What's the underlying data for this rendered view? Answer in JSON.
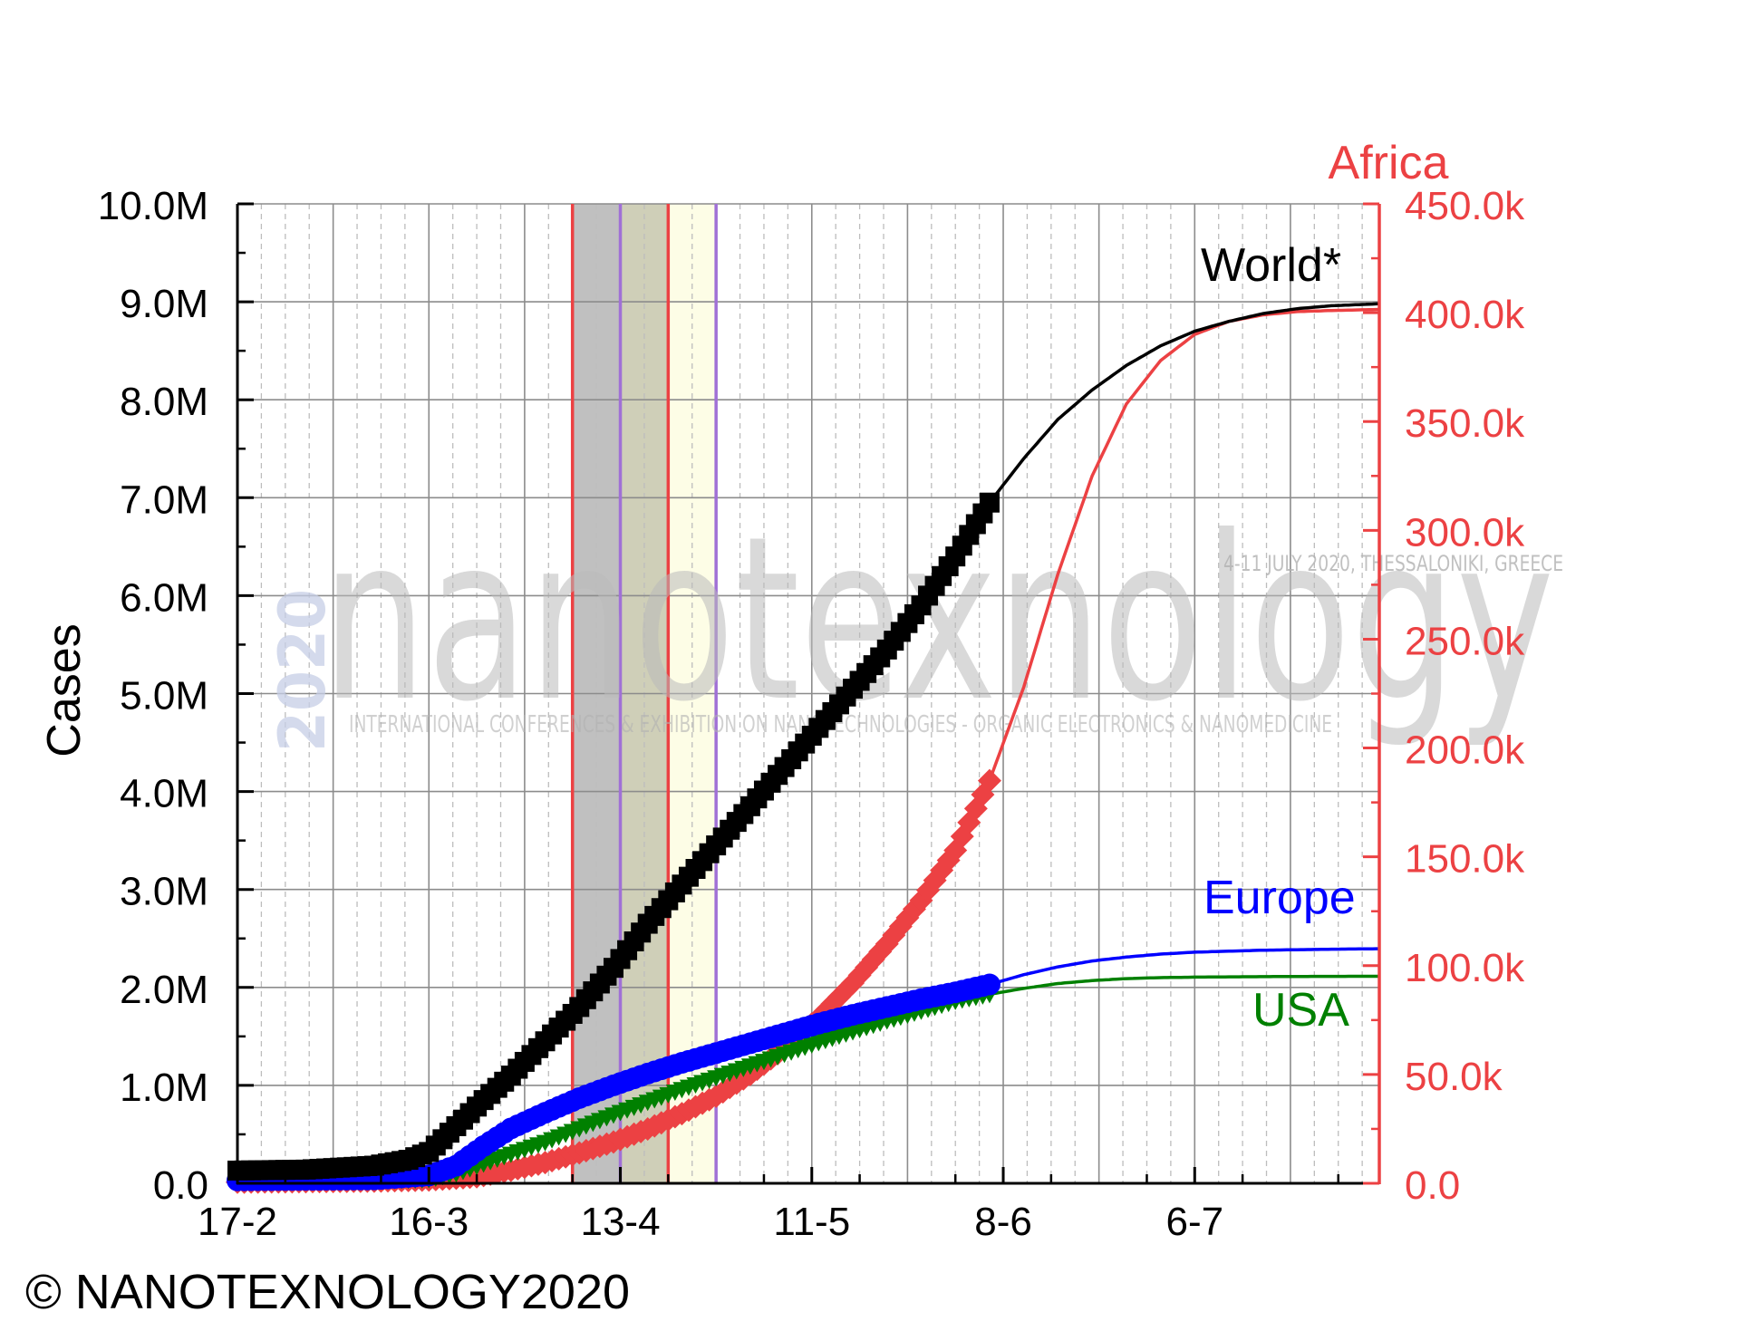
{
  "chart_data": {
    "type": "line",
    "ylabel": "Cases",
    "y2label": "Africa",
    "x_tick_labels": [
      "17-2",
      "16-3",
      "13-4",
      "11-5",
      "8-6",
      "6-7"
    ],
    "x_ticks_days": [
      0,
      28,
      56,
      84,
      112,
      140
    ],
    "xlim_days": [
      0,
      167
    ],
    "ylim": [
      0,
      10000000
    ],
    "y2lim": [
      0,
      450000
    ],
    "y_tick_labels": [
      "0.0",
      "1.0M",
      "2.0M",
      "3.0M",
      "4.0M",
      "5.0M",
      "6.0M",
      "7.0M",
      "8.0M",
      "9.0M",
      "10.0M"
    ],
    "y2_tick_labels": [
      "0.0",
      "50.0k",
      "100.0k",
      "150.0k",
      "200.0k",
      "250.0k",
      "300.0k",
      "350.0k",
      "400.0k",
      "450.0k"
    ],
    "y2_tick_values": [
      0,
      50000,
      100000,
      150000,
      200000,
      250000,
      300000,
      350000,
      400000,
      450000
    ],
    "grid": true,
    "shaded_bands_days": [
      {
        "from": 49,
        "to": 56,
        "color": "#c0c0c0"
      },
      {
        "from": 56,
        "to": 63,
        "color": "#cfcfb8"
      },
      {
        "from": 63,
        "to": 70,
        "color": "#fdfde6"
      }
    ],
    "vertical_lines_days": [
      {
        "day": 49,
        "color": "#ec4143"
      },
      {
        "day": 56,
        "color": "#a070d6"
      },
      {
        "day": 63,
        "color": "#ec4143"
      },
      {
        "day": 70,
        "color": "#a070d6"
      }
    ],
    "series": [
      {
        "name": "World*",
        "axis": "left",
        "color": "#000000",
        "marker": "square",
        "observed_until_day": 110,
        "x": [
          0,
          10,
          20,
          25,
          28,
          30,
          33,
          36,
          40,
          45,
          50,
          55,
          60,
          65,
          70,
          75,
          80,
          85,
          90,
          95,
          100,
          105,
          110,
          115,
          120,
          125,
          130,
          135,
          140,
          145,
          150,
          155,
          160,
          167
        ],
        "values": [
          130000,
          140000,
          180000,
          240000,
          320000,
          450000,
          650000,
          850000,
          1100000,
          1450000,
          1800000,
          2200000,
          2650000,
          3050000,
          3450000,
          3850000,
          4250000,
          4650000,
          5050000,
          5450000,
          5900000,
          6400000,
          6950000,
          7400000,
          7800000,
          8100000,
          8350000,
          8550000,
          8700000,
          8800000,
          8880000,
          8930000,
          8960000,
          8980000
        ]
      },
      {
        "name": "Europe",
        "axis": "left",
        "color": "#0000ff",
        "marker": "circle",
        "observed_until_day": 110,
        "x": [
          0,
          20,
          28,
          32,
          36,
          40,
          45,
          50,
          55,
          60,
          65,
          70,
          75,
          80,
          85,
          90,
          95,
          100,
          105,
          110,
          115,
          120,
          125,
          130,
          135,
          140,
          145,
          150,
          155,
          160,
          167
        ],
        "values": [
          30000,
          40000,
          80000,
          180000,
          380000,
          560000,
          720000,
          870000,
          1000000,
          1120000,
          1230000,
          1330000,
          1430000,
          1530000,
          1630000,
          1720000,
          1800000,
          1880000,
          1950000,
          2030000,
          2130000,
          2210000,
          2270000,
          2310000,
          2340000,
          2360000,
          2370000,
          2380000,
          2385000,
          2390000,
          2395000
        ]
      },
      {
        "name": "USA",
        "axis": "left",
        "color": "#008000",
        "marker": "triangle",
        "observed_until_day": 110,
        "x": [
          0,
          20,
          28,
          32,
          36,
          40,
          45,
          50,
          55,
          60,
          65,
          70,
          75,
          80,
          85,
          90,
          95,
          100,
          105,
          110,
          115,
          120,
          125,
          130,
          135,
          140,
          145,
          150,
          155,
          160,
          167
        ],
        "values": [
          20000,
          25000,
          40000,
          100000,
          200000,
          300000,
          420000,
          560000,
          700000,
          830000,
          960000,
          1080000,
          1200000,
          1320000,
          1440000,
          1550000,
          1660000,
          1760000,
          1860000,
          1930000,
          1990000,
          2040000,
          2070000,
          2090000,
          2100000,
          2105000,
          2108000,
          2110000,
          2112000,
          2113000,
          2114000
        ]
      },
      {
        "name": "Africa",
        "axis": "right",
        "color": "#ec4143",
        "marker": "diamond",
        "observed_until_day": 110,
        "x": [
          0,
          20,
          28,
          35,
          40,
          45,
          50,
          55,
          60,
          65,
          70,
          75,
          80,
          85,
          90,
          95,
          100,
          105,
          110,
          115,
          120,
          125,
          130,
          135,
          140,
          145,
          150,
          155,
          160,
          167
        ],
        "values": [
          500,
          1000,
          1500,
          3000,
          6000,
          9500,
          14000,
          19000,
          25000,
          32000,
          40000,
          50000,
          62000,
          76000,
          92000,
          110000,
          130000,
          153000,
          185000,
          228000,
          280000,
          325000,
          358000,
          378000,
          390000,
          396000,
          399000,
          400500,
          401000,
          401500
        ]
      }
    ],
    "legend_labels": {
      "world": "World*",
      "europe": "Europe",
      "usa": "USA",
      "africa": "Africa"
    }
  },
  "watermark": {
    "logo_text": "nanotexnology",
    "year": "2020",
    "dates": "4-11 JULY 2020, THESSALONIKI, GREECE",
    "subtitle": "INTERNATIONAL CONFERENCES & EXHIBITION ON NANOTECHNOLOGIES - ORGANIC ELECTRONICS & NANOMEDICINE"
  },
  "copyright": "© NANOTEXNOLOGY2020",
  "colors": {
    "world": "#000000",
    "europe": "#0000ff",
    "usa": "#008000",
    "africa": "#ec4143",
    "grid_major": "#8c8c8c",
    "grid_minor": "#bdbdbd"
  }
}
